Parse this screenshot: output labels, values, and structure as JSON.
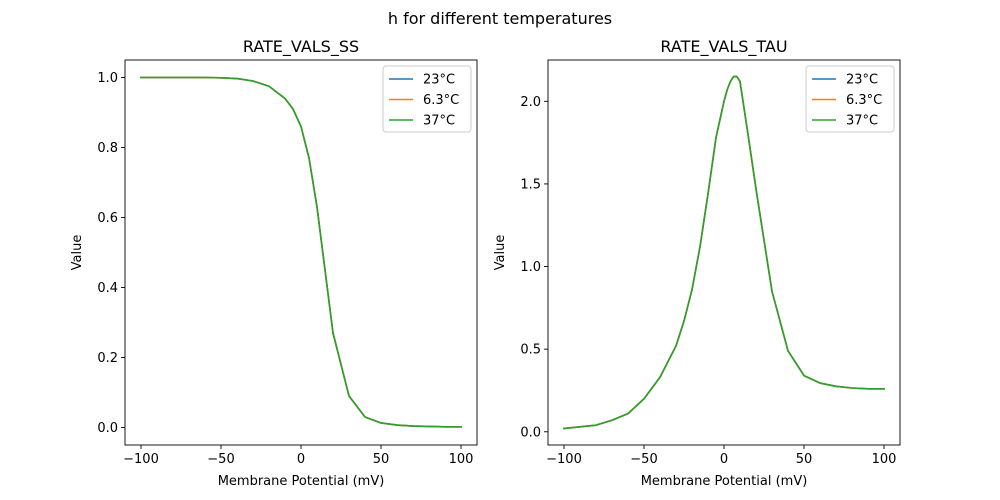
{
  "figure": {
    "suptitle": "h for different temperatures"
  },
  "chart_data": [
    {
      "type": "line",
      "title": "RATE_VALS_SS",
      "xlabel": "Membrane Potential (mV)",
      "ylabel": "Value",
      "xlim": [
        -110,
        110
      ],
      "ylim": [
        -0.05,
        1.05
      ],
      "xticks": [
        -100,
        -50,
        0,
        50,
        100
      ],
      "xtick_labels": [
        "−100",
        "−50",
        "0",
        "50",
        "100"
      ],
      "yticks": [
        0.0,
        0.2,
        0.4,
        0.6,
        0.8,
        1.0
      ],
      "ytick_labels": [
        "0.0",
        "0.2",
        "0.4",
        "0.6",
        "0.8",
        "1.0"
      ],
      "grid": false,
      "legend_position": "upper right",
      "x": [
        -100,
        -80,
        -60,
        -50,
        -40,
        -30,
        -20,
        -10,
        -5,
        0,
        5,
        10,
        15,
        20,
        30,
        40,
        50,
        60,
        70,
        80,
        90,
        100
      ],
      "series": [
        {
          "name": "23°C",
          "color": "#1f77b4",
          "values": [
            1.0,
            1.0,
            1.0,
            0.999,
            0.997,
            0.99,
            0.975,
            0.94,
            0.91,
            0.86,
            0.77,
            0.63,
            0.45,
            0.27,
            0.09,
            0.03,
            0.013,
            0.007,
            0.004,
            0.003,
            0.002,
            0.002
          ]
        },
        {
          "name": "6.3°C",
          "color": "#ff7f0e",
          "values": [
            1.0,
            1.0,
            1.0,
            0.999,
            0.997,
            0.99,
            0.975,
            0.94,
            0.91,
            0.86,
            0.77,
            0.63,
            0.45,
            0.27,
            0.09,
            0.03,
            0.013,
            0.007,
            0.004,
            0.003,
            0.002,
            0.002
          ]
        },
        {
          "name": "37°C",
          "color": "#2ca02c",
          "values": [
            1.0,
            1.0,
            1.0,
            0.999,
            0.997,
            0.99,
            0.975,
            0.94,
            0.91,
            0.86,
            0.77,
            0.63,
            0.45,
            0.27,
            0.09,
            0.03,
            0.013,
            0.007,
            0.004,
            0.003,
            0.002,
            0.002
          ]
        }
      ]
    },
    {
      "type": "line",
      "title": "RATE_VALS_TAU",
      "xlabel": "Membrane Potential (mV)",
      "ylabel": "Value",
      "xlim": [
        -110,
        110
      ],
      "ylim": [
        -0.08,
        2.25
      ],
      "xticks": [
        -100,
        -50,
        0,
        50,
        100
      ],
      "xtick_labels": [
        "−100",
        "−50",
        "0",
        "50",
        "100"
      ],
      "yticks": [
        0.0,
        0.5,
        1.0,
        1.5,
        2.0
      ],
      "ytick_labels": [
        "0.0",
        "0.5",
        "1.0",
        "1.5",
        "2.0"
      ],
      "grid": false,
      "legend_position": "upper right",
      "x": [
        -100,
        -90,
        -80,
        -70,
        -60,
        -50,
        -40,
        -30,
        -25,
        -20,
        -15,
        -10,
        -5,
        0,
        2,
        4,
        6,
        8,
        10,
        15,
        20,
        30,
        40,
        50,
        60,
        70,
        80,
        90,
        100
      ],
      "series": [
        {
          "name": "23°C",
          "color": "#1f77b4",
          "values": [
            0.02,
            0.03,
            0.04,
            0.07,
            0.11,
            0.2,
            0.33,
            0.52,
            0.67,
            0.86,
            1.12,
            1.44,
            1.78,
            2.0,
            2.07,
            2.12,
            2.15,
            2.15,
            2.12,
            1.8,
            1.47,
            0.85,
            0.49,
            0.34,
            0.295,
            0.275,
            0.265,
            0.26,
            0.26
          ]
        },
        {
          "name": "6.3°C",
          "color": "#ff7f0e",
          "values": [
            0.02,
            0.03,
            0.04,
            0.07,
            0.11,
            0.2,
            0.33,
            0.52,
            0.67,
            0.86,
            1.12,
            1.44,
            1.78,
            2.0,
            2.07,
            2.12,
            2.15,
            2.15,
            2.12,
            1.8,
            1.47,
            0.85,
            0.49,
            0.34,
            0.295,
            0.275,
            0.265,
            0.26,
            0.26
          ]
        },
        {
          "name": "37°C",
          "color": "#2ca02c",
          "values": [
            0.02,
            0.03,
            0.04,
            0.07,
            0.11,
            0.2,
            0.33,
            0.52,
            0.67,
            0.86,
            1.12,
            1.44,
            1.78,
            2.0,
            2.07,
            2.12,
            2.15,
            2.15,
            2.12,
            1.8,
            1.47,
            0.85,
            0.49,
            0.34,
            0.295,
            0.275,
            0.265,
            0.26,
            0.26
          ]
        }
      ]
    }
  ]
}
